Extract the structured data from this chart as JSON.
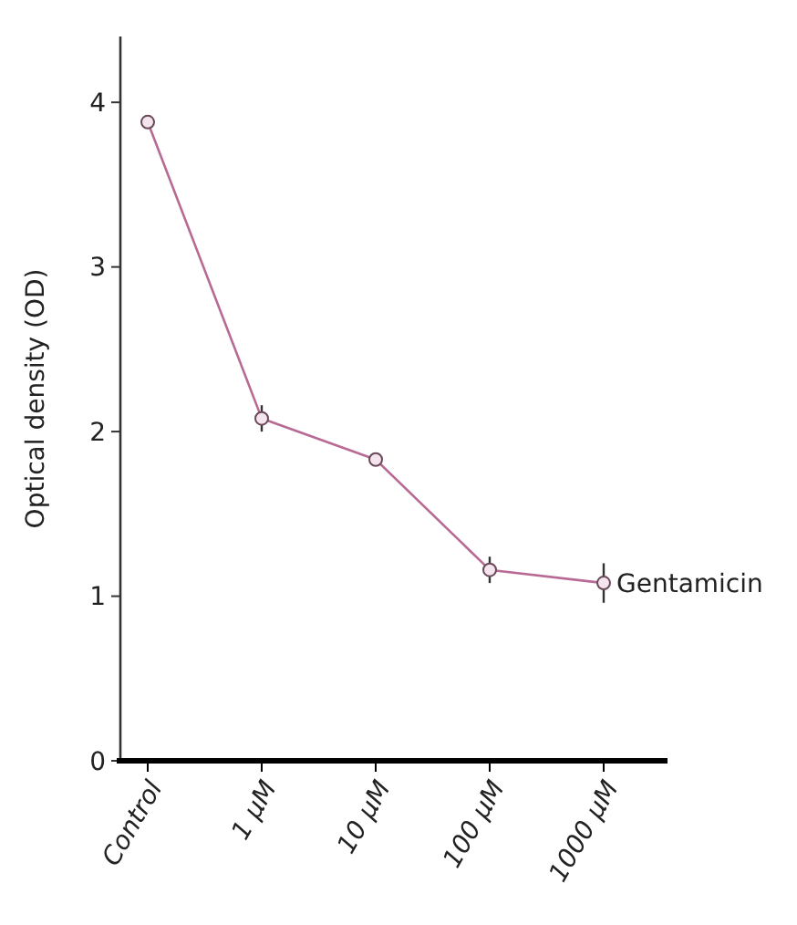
{
  "chart_data": {
    "type": "line",
    "ylabel": "Optical density (OD)",
    "categories": [
      "Control",
      "1 μM",
      "10 μM",
      "100 μM",
      "1000 μM"
    ],
    "series": [
      {
        "name": "Gentamicin",
        "color": "#b86a94",
        "values": [
          3.88,
          2.08,
          1.83,
          1.16,
          1.08
        ],
        "errors": [
          0.04,
          0.08,
          0.03,
          0.08,
          0.12
        ]
      }
    ],
    "ylim": [
      0,
      4.4
    ],
    "yticks": [
      0,
      1,
      2,
      3,
      4
    ],
    "marker": "circle",
    "grid": false
  }
}
